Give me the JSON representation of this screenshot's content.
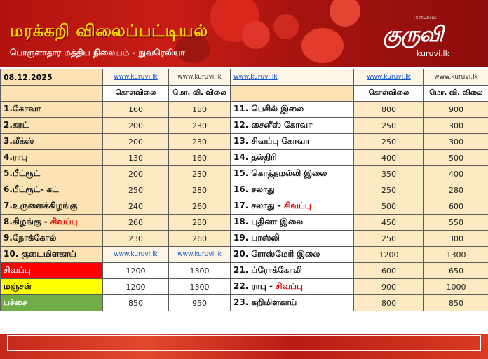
{
  "header": {
    "title": "மரக்கறி விலைப்பட்டியல்",
    "subtitle": "பொருளாதார மத்திய நிலையம் - நுவரெலியா"
  },
  "logo": {
    "small_text": "மலையக",
    "name": "குருவி",
    "url": "kuruvi.lk"
  },
  "table": {
    "date": "08.12.2025",
    "links": [
      "www.kuruvi.lk",
      "www.kuruvi.lk",
      "www.kuruvi.lk",
      "www.kuruvi.lk",
      "www.kuruvi.lk"
    ],
    "col_headers": {
      "wholesale": "கொள்விலை",
      "retail": "மொ. வி. விலை"
    },
    "left_rows": [
      {
        "name": "1.கோவா",
        "wholesale": "160",
        "retail": "180"
      },
      {
        "name": "2.கரட்",
        "wholesale": "200",
        "retail": "230"
      },
      {
        "name": "3.லீக்ஸ்",
        "wholesale": "200",
        "retail": "230"
      },
      {
        "name": "4.ராபு",
        "wholesale": "130",
        "retail": "160"
      },
      {
        "name": "5.பீட்ரூட்",
        "wholesale": "200",
        "retail": "230"
      },
      {
        "name": "6.பீட்ரூட்- கட்",
        "wholesale": "250",
        "retail": "280"
      },
      {
        "name": "7.உருளைக்கிழங்கு",
        "wholesale": "240",
        "retail": "260"
      },
      {
        "name": "8.கிழங்கு - ",
        "name_red": "சிவப்பு",
        "wholesale": "260",
        "retail": "280"
      },
      {
        "name": "9.நோக்கோல்",
        "wholesale": "230",
        "retail": "260"
      },
      {
        "name": "10. குடைமிளகாய்",
        "wholesale": "www.kuruvi.lk",
        "retail": "www.kuruvi.lk"
      },
      {
        "name": "சிவப்பு",
        "wholesale": "1200",
        "retail": "1300"
      },
      {
        "name": "மஞ்சள்",
        "wholesale": "1200",
        "retail": "1300"
      },
      {
        "name": "பச்சை",
        "wholesale": "850",
        "retail": "950"
      }
    ],
    "right_rows": [
      {
        "name": "11. பெசில் இலை",
        "wholesale": "800",
        "retail": "900"
      },
      {
        "name": "12. சைனீஸ் கோவா",
        "wholesale": "250",
        "retail": "300"
      },
      {
        "name": "13. சிவப்பு கோவா",
        "wholesale": "250",
        "retail": "300"
      },
      {
        "name": "14. தல்திரி",
        "wholesale": "400",
        "retail": "500"
      },
      {
        "name": "15. கொத்தமல்லி இலை",
        "wholesale": "350",
        "retail": "400"
      },
      {
        "name": "16. சலாது",
        "wholesale": "250",
        "retail": "280"
      },
      {
        "name": "17. சலாது - ",
        "name_red": "சிவப்பு",
        "wholesale": "500",
        "retail": "600"
      },
      {
        "name": "18. புதினா இலை",
        "wholesale": "450",
        "retail": "550"
      },
      {
        "name": "19. பாஸ்லி",
        "wholesale": "250",
        "retail": "300"
      },
      {
        "name": "20. ரோஸ்மேரி இலை",
        "wholesale": "1200",
        "retail": "1300"
      },
      {
        "name": "21. ப்ரோக்கோலி",
        "wholesale": "600",
        "retail": "650"
      },
      {
        "name": "22. ராபு - ",
        "name_red": "சிவப்பு",
        "wholesale": "900",
        "retail": "1000"
      },
      {
        "name": "23. கறிமிளகாய்",
        "wholesale": "800",
        "retail": "850"
      }
    ]
  },
  "colors": {
    "banner_red": "#b3120f",
    "title_yellow": "#ffd400",
    "tan_cell": "#fbe3b4",
    "red_cell": "#ff0000",
    "yellow_cell": "#ffff00",
    "green_cell": "#70ad47"
  }
}
